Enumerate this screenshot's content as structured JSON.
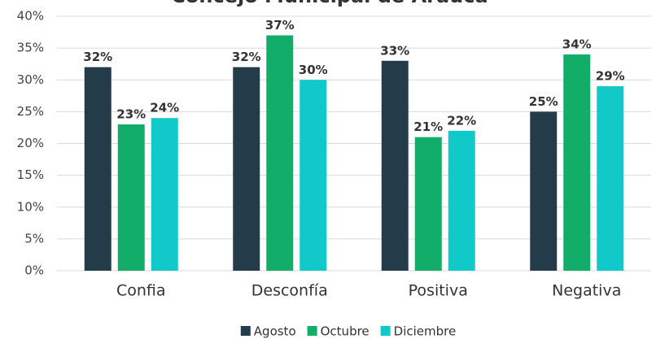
{
  "chart_data": {
    "type": "bar",
    "title": "Concejo Municipal de Arauca",
    "categories": [
      "Confia",
      "Desconfía",
      "Positiva",
      "Negativa"
    ],
    "series": [
      {
        "name": "Agosto",
        "color": "#243b4a",
        "values": [
          32,
          32,
          33,
          25
        ],
        "value_labels": [
          "32%",
          "32%",
          "33%",
          "25%"
        ]
      },
      {
        "name": "Octubre",
        "color": "#13ad6a",
        "values": [
          23,
          37,
          21,
          34
        ],
        "value_labels": [
          "23%",
          "37%",
          "21%",
          "34%"
        ]
      },
      {
        "name": "Diciembre",
        "color": "#12c9c9",
        "values": [
          24,
          30,
          22,
          29
        ],
        "value_labels": [
          "24%",
          "30%",
          "22%",
          "29%"
        ]
      }
    ],
    "ylim": [
      0,
      40
    ],
    "yticks": [
      {
        "value": 0,
        "label": "0%"
      },
      {
        "value": 5,
        "label": "5%"
      },
      {
        "value": 10,
        "label": "10%"
      },
      {
        "value": 15,
        "label": "15%"
      },
      {
        "value": 20,
        "label": "20%"
      },
      {
        "value": 25,
        "label": "25%"
      },
      {
        "value": 30,
        "label": "30%"
      },
      {
        "value": 35,
        "label": "35%"
      },
      {
        "value": 40,
        "label": "40%"
      }
    ],
    "grid": true,
    "legend": "bottom"
  }
}
